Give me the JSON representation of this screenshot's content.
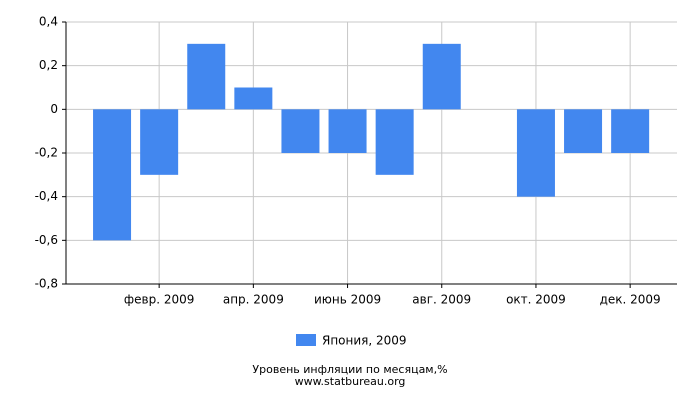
{
  "chart_data": {
    "type": "bar",
    "title": "Уровень инфляции по месяцам,%",
    "source": "www.statbureau.org",
    "categories": [
      null,
      "февр. 2009",
      null,
      "апр. 2009",
      null,
      "июнь 2009",
      null,
      "авг. 2009",
      null,
      "окт. 2009",
      null,
      "дек. 2009"
    ],
    "series": [
      {
        "name": "Япония, 2009",
        "color": "#4287ef",
        "values": [
          -0.6,
          -0.3,
          0.3,
          0.1,
          -0.2,
          -0.2,
          -0.3,
          0.3,
          0,
          -0.4,
          -0.2,
          -0.2
        ]
      }
    ],
    "ylim": [
      -0.8,
      0.4
    ],
    "yticks": [
      {
        "value": -0.8,
        "label": "-0,8"
      },
      {
        "value": -0.6,
        "label": "-0,6"
      },
      {
        "value": -0.4,
        "label": "-0,4"
      },
      {
        "value": -0.2,
        "label": "-0,2"
      },
      0,
      {
        "value": 0.2,
        "label": "0,2"
      },
      {
        "value": 0.4,
        "label": "0,4"
      }
    ],
    "grid": true
  }
}
